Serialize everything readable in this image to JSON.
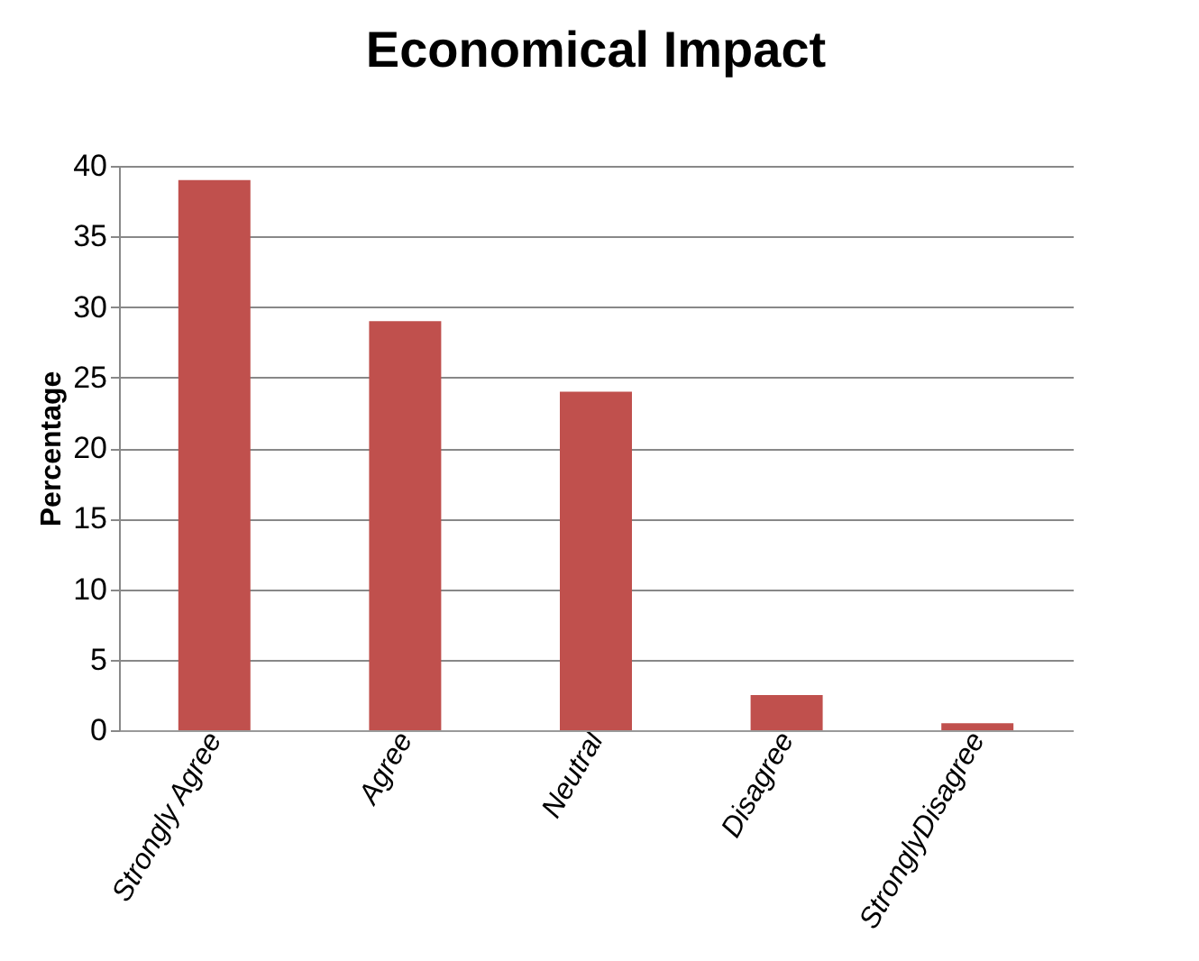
{
  "chart_data": {
    "type": "bar",
    "title": "Economical Impact",
    "ylabel": "Percentage",
    "categories": [
      "Strongly Agree",
      "Agree",
      "Neutral",
      "Disagree",
      "StronglyDisagree"
    ],
    "values": [
      39,
      29,
      24,
      2.5,
      0.5
    ],
    "color": "#c0504d",
    "ylim": [
      0,
      40
    ],
    "yticks": [
      0,
      5,
      10,
      15,
      20,
      25,
      30,
      35,
      40
    ],
    "grid": "y"
  }
}
